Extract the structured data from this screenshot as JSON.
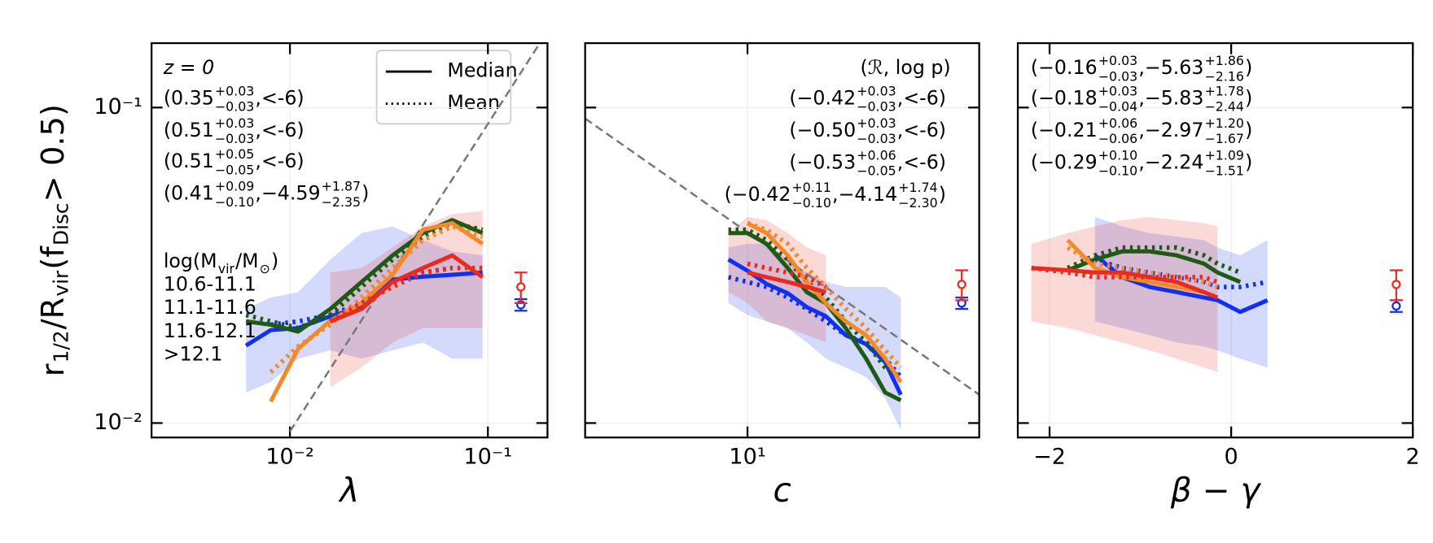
{
  "chart_data": [
    {
      "type": "line",
      "xlabel": "λ",
      "xscale": "log",
      "yscale": "log",
      "grid": true,
      "ylabel": [
        {
          "t": "r"
        },
        {
          "sub": "1/2"
        },
        {
          "t": "/R"
        },
        {
          "sub": "vir"
        },
        {
          "t": " (f"
        },
        {
          "sub": "Disc"
        },
        {
          "t": " > 0.5)"
        }
      ],
      "note": "z = 0",
      "line_styles": [
        "Median",
        "Mean"
      ],
      "legend_loc": "upper right",
      "legend_title": [
        {
          "t": "log(M"
        },
        {
          "sub": "vir"
        },
        {
          "t": "/M"
        },
        {
          "sub": "⊙"
        },
        {
          "t": ")"
        }
      ],
      "xlim": [
        0.002,
        0.2
      ],
      "ylim": [
        0.009,
        0.16
      ],
      "xticks": [
        {
          "value": 0.01,
          "label": "10⁻²"
        },
        {
          "value": 0.1,
          "label": "10⁻¹"
        }
      ],
      "yticks": [
        {
          "value": 0.01,
          "label": "10⁻²"
        },
        {
          "value": 0.1,
          "label": "10⁻¹"
        }
      ],
      "fit_line": {
        "x": [
          0.01,
          0.183
        ],
        "y": [
          0.0094,
          0.16
        ]
      },
      "x": [
        0.006,
        0.008,
        0.011,
        0.016,
        0.023,
        0.033,
        0.047,
        0.066,
        0.094
      ],
      "series": [
        {
          "name": "10.6-11.1",
          "color": "#1030f0",
          "median": [
            0.0176,
            0.0197,
            0.02,
            0.0218,
            0.0233,
            0.0285,
            0.0291,
            0.0295,
            0.03
          ],
          "mean": [
            null,
            0.0205,
            0.021,
            0.022,
            0.024,
            0.028,
            0.03,
            0.031,
            null
          ],
          "band": {
            "lower": [
              0.0125,
              0.0135,
              0.016,
              0.017,
              0.016,
              0.017,
              0.018,
              0.016,
              0.016
            ],
            "upper": [
              0.023,
              0.025,
              0.026,
              0.033,
              0.04,
              0.042,
              0.038,
              0.035,
              0.034
            ]
          },
          "ref": {
            "value": 0.0237,
            "err": 0.001
          },
          "stats": [
            {
              "t": "(0.35"
            },
            {
              "sup": "+0.03",
              "sub": "−0.03"
            },
            {
              "t": ",<-6)"
            }
          ]
        },
        {
          "name": "11.1-11.6",
          "color": "#1f5a14",
          "median": [
            0.021,
            0.0205,
            0.0195,
            0.023,
            0.028,
            0.034,
            0.04,
            0.044,
            0.04
          ],
          "mean": [
            0.022,
            0.021,
            0.02,
            0.022,
            0.027,
            0.033,
            0.039,
            0.043,
            0.041
          ],
          "stats": [
            {
              "t": "(0.51"
            },
            {
              "sup": "+0.03",
              "sub": "−0.03"
            },
            {
              "t": ",<-6)"
            }
          ]
        },
        {
          "name": "11.6-12.1",
          "color": "#f4892a",
          "median": [
            null,
            0.0117,
            0.0172,
            0.0211,
            0.024,
            0.0295,
            0.041,
            0.043,
            0.037
          ],
          "mean": [
            null,
            0.0145,
            0.0175,
            0.0205,
            0.025,
            0.031,
            0.038,
            0.042,
            0.039
          ],
          "stats": [
            {
              "t": "(0.51"
            },
            {
              "sup": "+0.05",
              "sub": "−0.05"
            },
            {
              "t": ",<-6)"
            }
          ]
        },
        {
          "name": ">12.1",
          "color": "#ea2a1e",
          "median": [
            null,
            null,
            null,
            0.021,
            0.023,
            0.028,
            0.031,
            0.034,
            0.029
          ],
          "mean": [
            null,
            null,
            null,
            0.021,
            0.024,
            0.027,
            0.03,
            0.031,
            0.031
          ],
          "band": {
            "lower": [
              null,
              null,
              null,
              0.013,
              0.015,
              0.018,
              0.02,
              0.02,
              0.02
            ],
            "upper": [
              null,
              null,
              null,
              0.03,
              0.031,
              0.036,
              0.042,
              0.046,
              0.047
            ]
          },
          "ref": {
            "value": 0.027,
            "err": 0.003
          },
          "stats": [
            {
              "t": "(0.41"
            },
            {
              "sup": "+0.09",
              "sub": "−0.10"
            },
            {
              "t": ",−4.59"
            },
            {
              "sup": "+1.87",
              "sub": "−2.35"
            },
            {
              "t": ")"
            }
          ]
        }
      ]
    },
    {
      "type": "line",
      "xlabel": "c",
      "xscale": "log",
      "yscale": "log",
      "grid": true,
      "header": "(ℛ, log p)",
      "xlim": [
        1.5,
        150
      ],
      "ylim": [
        0.009,
        0.16
      ],
      "xticks": [
        {
          "value": 10,
          "label": "10¹"
        }
      ],
      "yticks": [
        0.01,
        0.1
      ],
      "fit_line": {
        "x": [
          1.5,
          150
        ],
        "y": [
          0.0923,
          0.0123
        ]
      },
      "x": [
        8,
        10,
        12.5,
        16,
        20,
        25,
        31.5,
        40,
        50,
        60
      ],
      "series": [
        {
          "color": "#1030f0",
          "median": [
            0.033,
            0.0304,
            0.0276,
            0.0258,
            0.0233,
            0.0218,
            0.019,
            0.0178,
            0.0156,
            0.0123
          ],
          "mean": [
            0.029,
            0.028,
            0.027,
            0.025,
            0.023,
            0.021,
            0.019,
            0.018,
            0.016,
            0.014
          ],
          "band": {
            "lower": [
              0.024,
              0.022,
              0.021,
              0.02,
              0.018,
              0.016,
              0.015,
              0.014,
              0.012,
              0.0095
            ],
            "upper": [
              0.036,
              0.037,
              0.037,
              0.033,
              0.03,
              0.028,
              0.027,
              0.027,
              0.027,
              0.025
            ]
          },
          "ref": {
            "value": 0.024,
            "err": 0.001
          },
          "stats": [
            {
              "t": "(−0.42"
            },
            {
              "sup": "+0.03",
              "sub": "−0.03"
            },
            {
              "t": ",<-6)"
            }
          ]
        },
        {
          "color": "#1f5a14",
          "median": [
            0.04,
            0.04,
            0.037,
            0.031,
            0.026,
            0.024,
            0.02,
            0.016,
            0.0125,
            0.0118
          ],
          "mean": [
            0.041,
            0.041,
            0.038,
            0.033,
            0.028,
            0.025,
            0.021,
            0.018,
            0.015,
            0.014
          ],
          "stats": [
            {
              "t": "(−0.50"
            },
            {
              "sup": "+0.03",
              "sub": "−0.03"
            },
            {
              "t": ",<-6)"
            }
          ]
        },
        {
          "color": "#f4892a",
          "median": [
            null,
            0.043,
            0.04,
            0.034,
            0.028,
            0.024,
            0.021,
            0.019,
            0.016,
            0.0135
          ],
          "mean": [
            null,
            0.043,
            0.041,
            0.037,
            0.031,
            0.027,
            0.023,
            0.02,
            0.017,
            0.015
          ],
          "stats": [
            {
              "t": "(−0.53"
            },
            {
              "sup": "+0.06",
              "sub": "−0.05"
            },
            {
              "t": ",<-6)"
            }
          ]
        },
        {
          "color": "#ea2a1e",
          "median": [
            null,
            0.03,
            0.029,
            0.028,
            0.027,
            0.026,
            null,
            null,
            null,
            null
          ],
          "mean": [
            null,
            0.032,
            0.031,
            0.03,
            0.029,
            0.027,
            null,
            null,
            null,
            null
          ],
          "band": {
            "lower": [
              0.026,
              0.024,
              0.021,
              0.02,
              0.019,
              0.018,
              null,
              null,
              null,
              null
            ],
            "upper": [
              0.04,
              0.045,
              0.044,
              0.04,
              0.036,
              0.034,
              null,
              null,
              null,
              null
            ]
          },
          "ref": {
            "value": 0.0275,
            "err": 0.003
          },
          "stats": [
            {
              "t": "(−0.42"
            },
            {
              "sup": "+0.11",
              "sub": "−0.10"
            },
            {
              "t": ",−4.14"
            },
            {
              "sup": "+1.74",
              "sub": "−2.30"
            },
            {
              "t": ")"
            }
          ]
        }
      ]
    },
    {
      "type": "line",
      "xlabel": "β − γ",
      "xscale": "linear",
      "yscale": "log",
      "grid": true,
      "xlim": [
        -2.35,
        2
      ],
      "ylim": [
        0.009,
        0.16
      ],
      "xticks": [
        {
          "value": -2,
          "label": "−2"
        },
        0,
        2
      ],
      "yticks": [
        0.01,
        0.1
      ],
      "x": [
        -2.2,
        -1.8,
        -1.5,
        -1.2,
        -0.9,
        -0.6,
        -0.3,
        -0.15,
        0.1,
        0.4
      ],
      "series": [
        {
          "color": "#1030f0",
          "median": [
            null,
            null,
            0.034,
            0.029,
            0.027,
            0.026,
            0.025,
            0.0245,
            0.0225,
            0.0245
          ],
          "mean": [
            null,
            null,
            0.033,
            0.031,
            0.03,
            0.029,
            0.028,
            0.027,
            0.027,
            0.028
          ],
          "band": {
            "lower": [
              null,
              null,
              0.021,
              0.02,
              0.019,
              0.018,
              0.0175,
              0.017,
              0.016,
              0.015
            ],
            "upper": [
              null,
              null,
              0.045,
              0.042,
              0.04,
              0.039,
              0.038,
              0.036,
              0.034,
              0.038
            ]
          },
          "ref": {
            "value": 0.0235,
            "err": 0.001
          },
          "stats": [
            {
              "t": "(−0.16"
            },
            {
              "sup": "+0.03",
              "sub": "−0.03"
            },
            {
              "t": ",−5.63"
            },
            {
              "sup": "+1.86",
              "sub": "−2.16"
            },
            {
              "t": ")"
            }
          ]
        },
        {
          "color": "#1f5a14",
          "median": [
            null,
            0.0305,
            0.033,
            0.035,
            0.035,
            0.034,
            0.032,
            0.03,
            0.028,
            null
          ],
          "mean": [
            null,
            0.031,
            0.034,
            0.036,
            0.036,
            0.036,
            0.034,
            0.032,
            0.03,
            null
          ],
          "stats": [
            {
              "t": "(−0.18"
            },
            {
              "sup": "+0.03",
              "sub": "−0.04"
            },
            {
              "t": ",−5.83"
            },
            {
              "sup": "+1.78",
              "sub": "−2.44"
            },
            {
              "t": ")"
            }
          ]
        },
        {
          "color": "#f4892a",
          "median": [
            null,
            0.038,
            0.031,
            0.029,
            0.028,
            0.027,
            0.026,
            null,
            null,
            null
          ],
          "mean": [
            null,
            0.036,
            0.032,
            0.031,
            0.03,
            0.029,
            0.028,
            0.027,
            null,
            null
          ],
          "stats": [
            {
              "t": "(−0.21"
            },
            {
              "sup": "+0.06",
              "sub": "−0.06"
            },
            {
              "t": ",−2.97"
            },
            {
              "sup": "+1.20",
              "sub": "−1.67"
            },
            {
              "t": ")"
            }
          ]
        },
        {
          "color": "#ea2a1e",
          "median": [
            0.031,
            0.0305,
            0.03,
            0.03,
            0.029,
            0.028,
            0.026,
            0.025,
            null,
            null
          ],
          "mean": [
            0.031,
            0.03,
            0.029,
            0.029,
            0.029,
            0.029,
            0.029,
            0.028,
            null,
            null
          ],
          "band": {
            "lower": [
              0.021,
              0.02,
              0.019,
              0.018,
              0.017,
              0.016,
              0.015,
              0.0145,
              null,
              null
            ],
            "upper": [
              0.037,
              0.04,
              0.042,
              0.044,
              0.045,
              0.044,
              0.043,
              0.042,
              null,
              null
            ]
          },
          "ref": {
            "value": 0.0275,
            "err": 0.003
          },
          "stats": [
            {
              "t": "(−0.29"
            },
            {
              "sup": "+0.10",
              "sub": "−0.10"
            },
            {
              "t": ",−2.24"
            },
            {
              "sup": "+1.09",
              "sub": "−1.51"
            },
            {
              "t": ")"
            }
          ]
        }
      ]
    }
  ]
}
